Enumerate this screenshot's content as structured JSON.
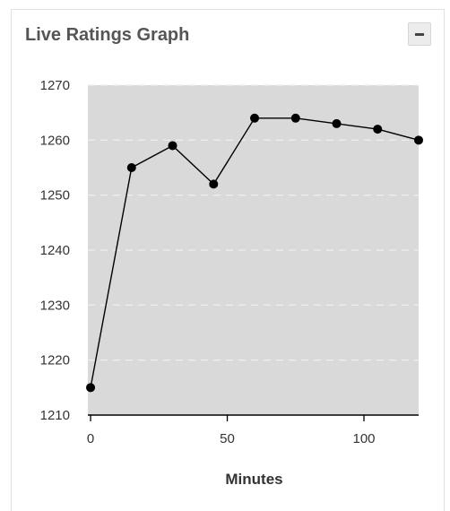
{
  "panel": {
    "title": "Live Ratings Graph",
    "collapse_icon": "minus-icon"
  },
  "colors": {
    "plot_background": "#d9d9d9",
    "grid": "#ededed",
    "line": "#000000",
    "title_text": "#555555"
  },
  "chart_data": {
    "type": "line",
    "title": "",
    "xlabel": "Minutes",
    "ylabel": "",
    "xlim": [
      -1,
      120
    ],
    "ylim": [
      1210,
      1270
    ],
    "x_ticks": [
      0,
      50,
      100
    ],
    "y_ticks": [
      1210,
      1220,
      1230,
      1240,
      1250,
      1260,
      1270
    ],
    "grid": "horizontal dashed",
    "series": [
      {
        "x": [
          0,
          15,
          30,
          45,
          60,
          75,
          90,
          105,
          120
        ],
        "y": [
          1215,
          1255,
          1259,
          1252,
          1264,
          1264,
          1263,
          1262,
          1260
        ]
      }
    ]
  }
}
